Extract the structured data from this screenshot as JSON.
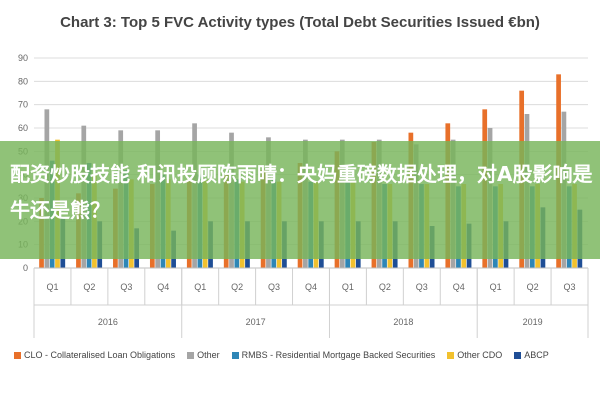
{
  "chart_data": {
    "type": "bar",
    "title": "Chart 3: Top 5 FVC Activity types (Total Debt Securities Issued €bn)",
    "xlabel": "",
    "ylabel": "",
    "ylim": [
      0,
      90
    ],
    "yticks": [
      0,
      10,
      20,
      30,
      40,
      50,
      60,
      70,
      80,
      90
    ],
    "grid": true,
    "legend_position": "bottom",
    "categories": [
      "Q1",
      "Q2",
      "Q3",
      "Q4",
      "Q1",
      "Q2",
      "Q3",
      "Q4",
      "Q1",
      "Q2",
      "Q3",
      "Q4",
      "Q1",
      "Q2",
      "Q3"
    ],
    "groups": [
      {
        "label": "2016",
        "categories": 4
      },
      {
        "label": "2017",
        "categories": 4
      },
      {
        "label": "2018",
        "categories": 4
      },
      {
        "label": "2019",
        "categories": 3
      }
    ],
    "series": [
      {
        "name": "CLO - Collateralised Loan Obligations",
        "color": "#e8702a",
        "values": [
          30,
          32,
          34,
          36,
          38,
          40,
          42,
          45,
          50,
          54,
          58,
          62,
          68,
          76,
          83
        ]
      },
      {
        "name": "Other",
        "color": "#a5a5a5",
        "values": [
          68,
          61,
          59,
          59,
          62,
          58,
          56,
          55,
          55,
          55,
          53,
          55,
          60,
          66,
          67
        ]
      },
      {
        "name": "RMBS - Residential Mortgage Backed Securities",
        "color": "#2e86b6",
        "values": [
          46,
          45,
          42,
          40,
          40,
          38,
          38,
          37,
          37,
          36,
          36,
          35,
          35,
          35,
          35
        ]
      },
      {
        "name": "Other CDO",
        "color": "#f2c12e",
        "values": [
          55,
          40,
          38,
          38,
          38,
          37,
          37,
          37,
          37,
          36,
          36,
          36,
          36,
          36,
          36
        ]
      },
      {
        "name": "ABCP",
        "color": "#1f4e96",
        "values": [
          22,
          20,
          17,
          16,
          20,
          20,
          20,
          20,
          20,
          20,
          18,
          19,
          20,
          26,
          25
        ]
      }
    ]
  },
  "overlay": {
    "text": "配资炒股技能 和讯投顾陈雨晴：央妈重磅数据处理，对A股影响是牛还是熊？"
  }
}
